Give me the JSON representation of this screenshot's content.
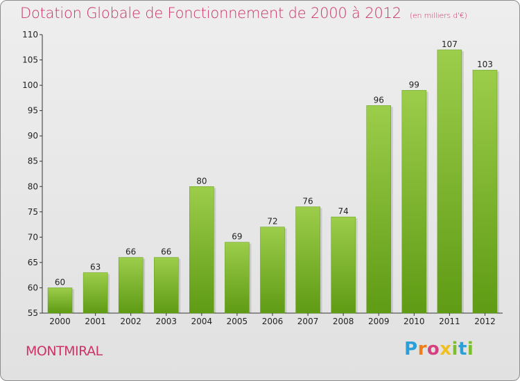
{
  "chart_data": {
    "type": "bar",
    "title": "Dotation Globale de Fonctionnement de 2000 à 2012",
    "subtitle": "(en milliers d'€)",
    "categories": [
      "2000",
      "2001",
      "2002",
      "2003",
      "2004",
      "2005",
      "2006",
      "2007",
      "2008",
      "2009",
      "2010",
      "2011",
      "2012"
    ],
    "values": [
      60,
      63,
      66,
      66,
      80,
      69,
      72,
      76,
      74,
      96,
      99,
      107,
      103
    ],
    "ylim": [
      55,
      110
    ],
    "yticks": [
      55,
      60,
      65,
      70,
      75,
      80,
      85,
      90,
      95,
      100,
      105,
      110
    ],
    "grid": false,
    "bar_color_top": "#9ccd4b",
    "bar_color_bottom": "#5f9b14"
  },
  "footer": {
    "commune": "MONTMIRAL",
    "logo_letters": [
      "P",
      "r",
      "o",
      "x",
      "i",
      "t",
      "i"
    ]
  }
}
